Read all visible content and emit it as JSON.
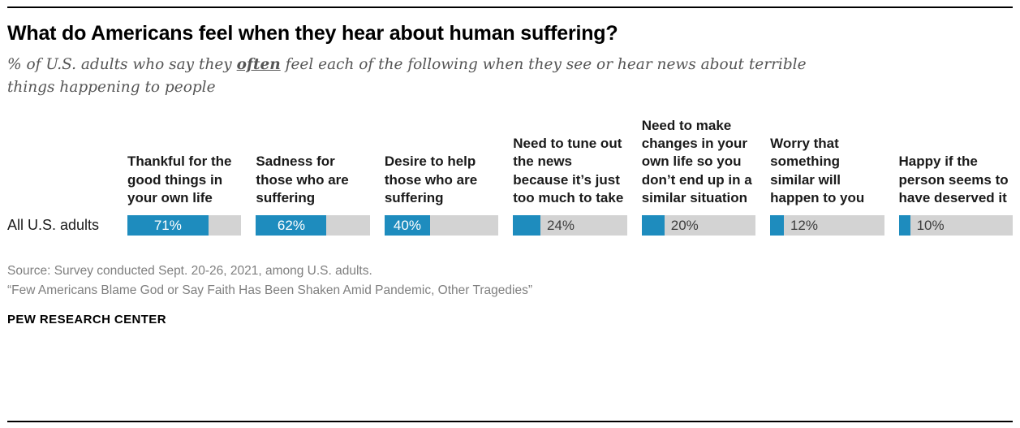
{
  "page": {
    "title": "What do Americans feel when they hear about human suffering?",
    "subtitle": {
      "prefix": "% of U.S. adults who say they ",
      "emphasis": "often",
      "suffix": " feel each of the following when they see or hear news about terrible things happening to people"
    },
    "source_lines": [
      "Source: Survey conducted Sept. 20-26, 2021, among U.S. adults.",
      "“Few Americans Blame God or Say Faith Has Been Shaken Amid Pandemic, Other Tragedies”"
    ],
    "footer": "PEW RESEARCH CENTER"
  },
  "chart_data": {
    "type": "bar",
    "orientation": "horizontal",
    "title": "What do Americans feel when they hear about human suffering?",
    "row_label": "All U.S. adults",
    "categories": [
      "Thankful for the good things in your own life",
      "Sadness for those who are suffering",
      "Desire to help those who are suffering",
      "Need to tune out the news because it’s just too much to take",
      "Need to make changes in your own life so you don’t end up in a similar situation",
      "Worry that something similar will happen to you",
      "Happy if the person seems to have deserved it"
    ],
    "values": [
      71,
      62,
      40,
      24,
      20,
      12,
      10
    ],
    "value_labels": [
      "71%",
      "62%",
      "40%",
      "24%",
      "20%",
      "12%",
      "10%"
    ],
    "scale_max": 100,
    "inside_label_threshold": 30,
    "legend": "none",
    "grid": false,
    "colors": {
      "bar_fill": "#1e8cbe",
      "bar_track": "#d3d3d3"
    }
  }
}
